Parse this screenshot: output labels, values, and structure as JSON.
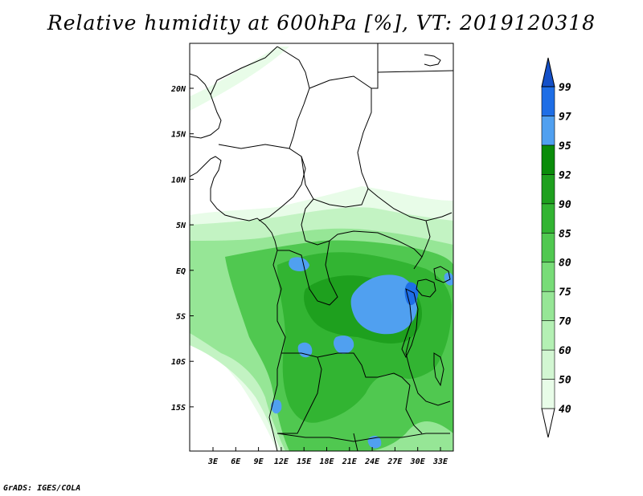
{
  "title": "Relative humidity at 600hPa [%], VT: 2019120318",
  "footer": "GrADS: IGES/COLA",
  "map": {
    "lat_labels": [
      "20N",
      "15N",
      "10N",
      "5N",
      "EQ",
      "5S",
      "10S",
      "15S"
    ],
    "lon_labels": [
      "3E",
      "6E",
      "9E",
      "12E",
      "15E",
      "18E",
      "21E",
      "24E",
      "27E",
      "30E",
      "33E"
    ]
  },
  "colorbar": {
    "levels": [
      "40",
      "50",
      "60",
      "70",
      "75",
      "80",
      "85",
      "90",
      "92",
      "95",
      "97",
      "99"
    ],
    "colors": [
      "#ffffff",
      "#e8fce8",
      "#d2f6d2",
      "#b4f0b4",
      "#96e696",
      "#78dc78",
      "#50c850",
      "#32b432",
      "#1ea01e",
      "#0a8c0a",
      "#50a0f0",
      "#1e6ee6",
      "#1450c8"
    ]
  },
  "colors": {
    "land_border": "#000000",
    "frame": "#000000"
  }
}
